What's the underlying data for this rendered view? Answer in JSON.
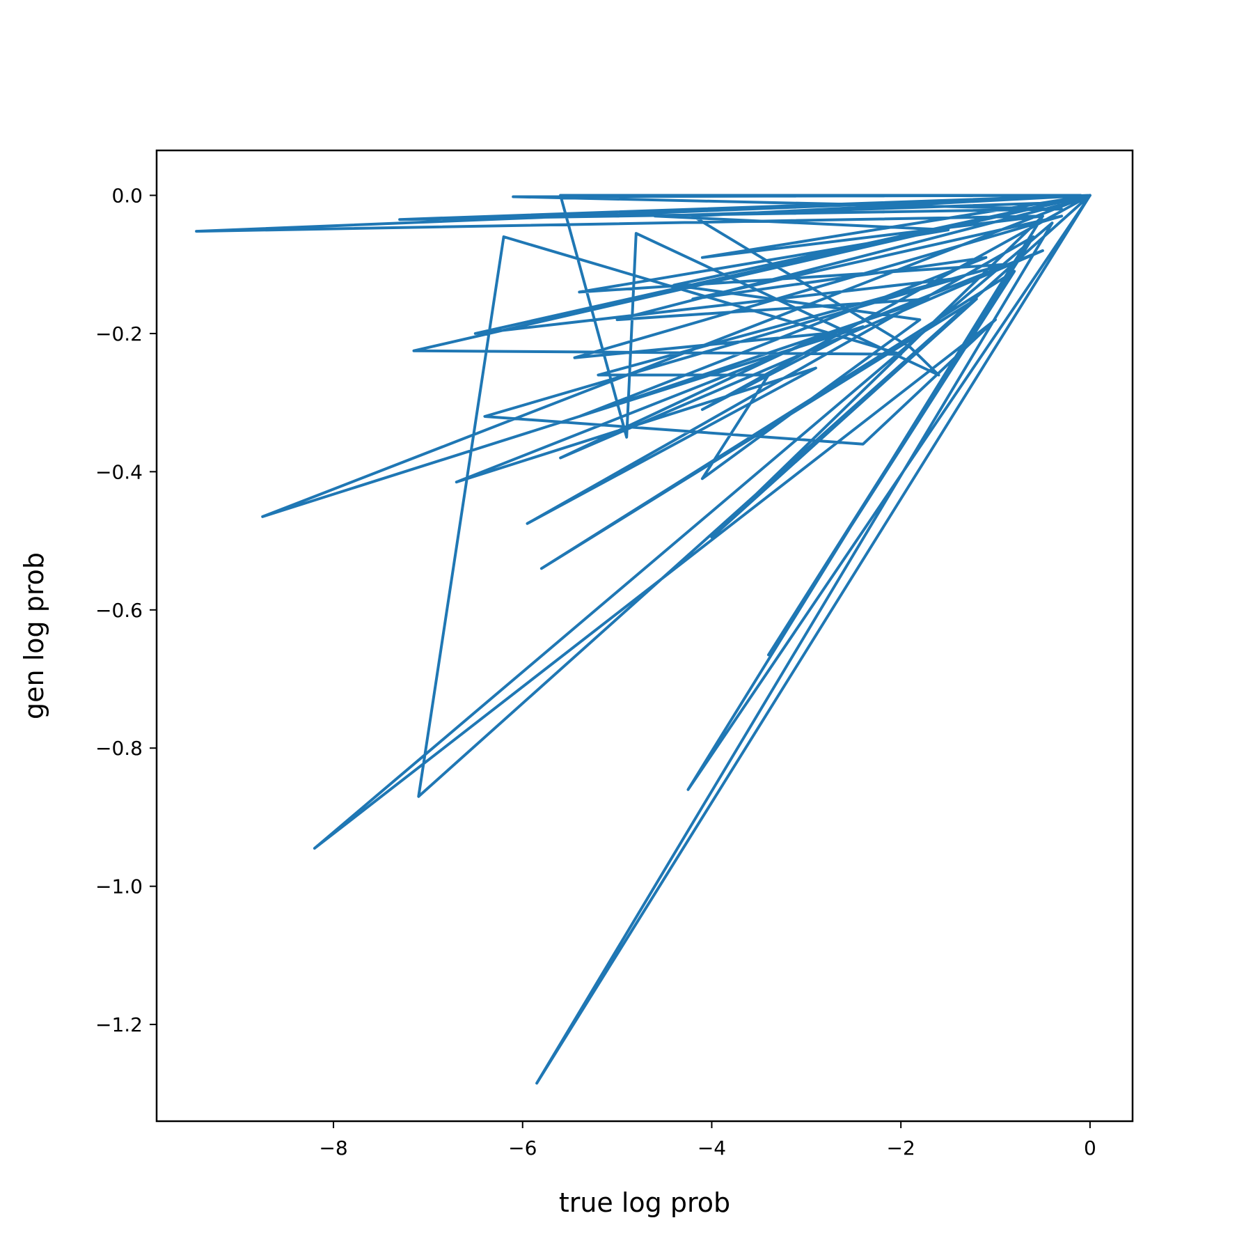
{
  "chart_data": {
    "type": "line",
    "title": "",
    "xlabel": "true log prob",
    "ylabel": "gen log prob",
    "xlim": [
      -9.87,
      0.45
    ],
    "ylim": [
      -1.34,
      0.065
    ],
    "xticks": [
      {
        "value": -8,
        "label": "−8"
      },
      {
        "value": -6,
        "label": "−6"
      },
      {
        "value": -4,
        "label": "−4"
      },
      {
        "value": -2,
        "label": "−2"
      },
      {
        "value": 0,
        "label": "0"
      }
    ],
    "yticks": [
      {
        "value": 0.0,
        "label": "0.0"
      },
      {
        "value": -0.2,
        "label": "−0.2"
      },
      {
        "value": -0.4,
        "label": "−0.4"
      },
      {
        "value": -0.6,
        "label": "−0.6"
      },
      {
        "value": -0.8,
        "label": "−0.8"
      },
      {
        "value": -1.0,
        "label": "−1.0"
      },
      {
        "value": -1.2,
        "label": "−1.2"
      }
    ],
    "grid": false,
    "legend": "none",
    "series": [
      {
        "color": "#1f77b4",
        "points": [
          [
            0.0,
            0.0
          ],
          [
            -9.45,
            -0.052
          ],
          [
            -0.5,
            -0.03
          ],
          [
            -4.1,
            -0.09
          ],
          [
            0.0,
            0.0
          ],
          [
            -7.3,
            -0.035
          ],
          [
            -0.3,
            -0.02
          ],
          [
            -6.1,
            -0.002
          ],
          [
            -0.1,
            0.0
          ],
          [
            -5.6,
            0.0
          ],
          [
            -4.9,
            -0.35
          ],
          [
            -4.8,
            -0.055
          ],
          [
            -1.6,
            -0.26
          ],
          [
            -1.9,
            -0.22
          ],
          [
            -4.2,
            -0.03
          ],
          [
            0.0,
            0.0
          ],
          [
            -8.75,
            -0.465
          ],
          [
            -2.4,
            -0.19
          ],
          [
            -4.1,
            -0.31
          ],
          [
            0.0,
            0.0
          ],
          [
            -7.1,
            -0.87
          ],
          [
            -6.2,
            -0.06
          ],
          [
            -2.0,
            -0.23
          ],
          [
            -7.15,
            -0.225
          ],
          [
            0.0,
            0.0
          ],
          [
            -6.5,
            -0.2
          ],
          [
            -1.4,
            -0.12
          ],
          [
            -6.4,
            -0.32
          ],
          [
            -2.4,
            -0.36
          ],
          [
            -1.0,
            -0.18
          ],
          [
            -8.2,
            -0.945
          ],
          [
            -0.4,
            -0.04
          ],
          [
            -5.85,
            -1.285
          ],
          [
            0.0,
            0.0
          ],
          [
            -4.25,
            -0.86
          ],
          [
            -0.5,
            -0.03
          ],
          [
            -4.0,
            -0.495
          ],
          [
            -1.2,
            -0.15
          ],
          [
            -5.8,
            -0.54
          ],
          [
            -0.8,
            -0.11
          ],
          [
            -3.4,
            -0.665
          ],
          [
            -0.6,
            -0.06
          ],
          [
            -5.95,
            -0.475
          ],
          [
            -2.9,
            -0.25
          ],
          [
            -6.7,
            -0.415
          ],
          [
            -0.5,
            -0.08
          ],
          [
            -5.6,
            -0.38
          ],
          [
            -2.8,
            -0.2
          ],
          [
            -5.45,
            -0.235
          ],
          [
            -0.3,
            -0.03
          ],
          [
            -4.2,
            -0.15
          ],
          [
            -1.1,
            -0.09
          ],
          [
            -5.4,
            -0.32
          ],
          [
            -1.7,
            -0.15
          ],
          [
            -5.0,
            -0.18
          ],
          [
            -0.2,
            -0.01
          ],
          [
            -4.6,
            -0.03
          ],
          [
            -1.5,
            -0.05
          ],
          [
            -5.4,
            -0.14
          ],
          [
            -0.9,
            -0.1
          ],
          [
            -5.2,
            -0.26
          ],
          [
            -3.4,
            -0.26
          ],
          [
            -4.1,
            -0.41
          ],
          [
            -1.8,
            -0.18
          ],
          [
            -4.4,
            -0.13
          ],
          [
            0.0,
            0.0
          ]
        ]
      }
    ]
  }
}
